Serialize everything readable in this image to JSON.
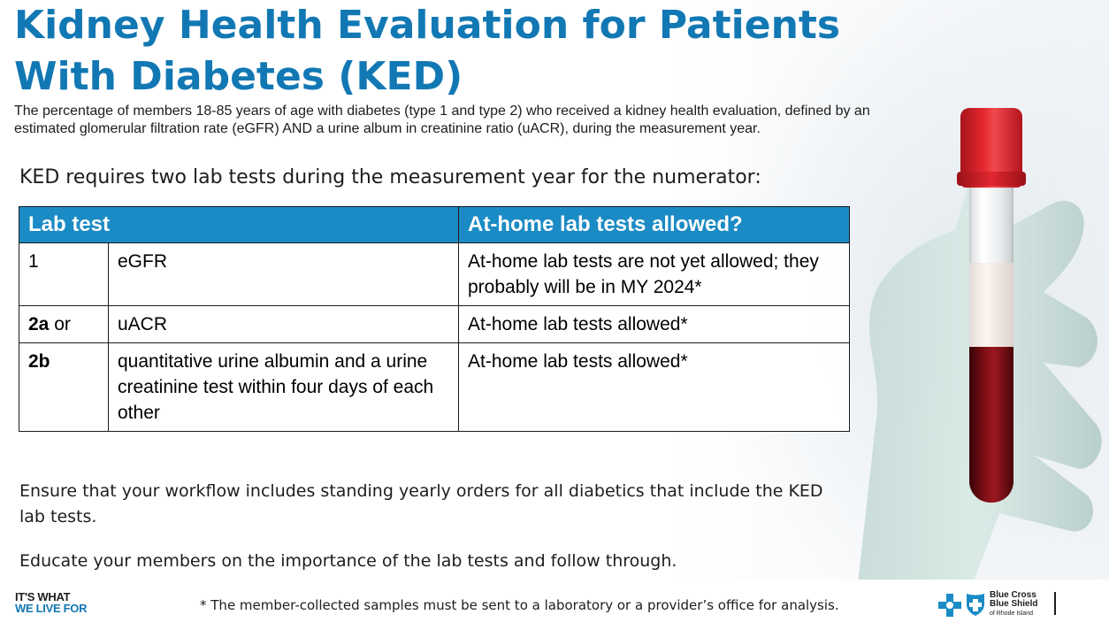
{
  "slide": {
    "title": "Kidney Health Evaluation for Patients With Diabetes (KED)",
    "description": "The percentage of members 18-85 years of age with diabetes (type 1 and type 2) who received a kidney health evaluation, defined by an estimated glomerular filtration rate (eGFR) AND a urine album in creatinine ratio (uACR), during the measurement year.",
    "lead": "KED requires two lab tests during the measurement year for the numerator:"
  },
  "table": {
    "headers": [
      "Lab test",
      "At-home lab tests allowed?"
    ],
    "rows": [
      {
        "num": "1",
        "num_suffix": "",
        "test": "eGFR",
        "home": "At-home lab tests are not yet allowed; they probably will be in MY 2024*"
      },
      {
        "num": "2a",
        "num_suffix": " or",
        "test": "uACR",
        "home": "At-home lab tests allowed*"
      },
      {
        "num": "2b",
        "num_suffix": "",
        "test": "quantitative urine albumin and a urine creatinine test within four days of each other",
        "home": "At-home lab tests allowed*"
      }
    ]
  },
  "notes": {
    "workflow": "Ensure that your workflow includes standing yearly orders for all diabetics that include the KED lab tests.",
    "educate": "Educate your members on the importance of the lab tests and follow through."
  },
  "footer": {
    "slogan_line1": "IT'S WHAT",
    "slogan_line2": "WE LIVE FOR",
    "footnote": "* The member-collected samples must be sent to a laboratory or a provider’s office for analysis.",
    "brand_line1": "Blue Cross",
    "brand_line2": "Blue Shield",
    "brand_line3": "of Rhode Island"
  },
  "colors": {
    "title_blue": "#1278b4",
    "header_blue": "#1b8bc5",
    "tube_cap": "#e2262e",
    "blood": "#7e0f16"
  },
  "icons": [
    "blue-cross-icon",
    "blue-shield-icon",
    "test-tube-image",
    "glove-hand-image"
  ]
}
